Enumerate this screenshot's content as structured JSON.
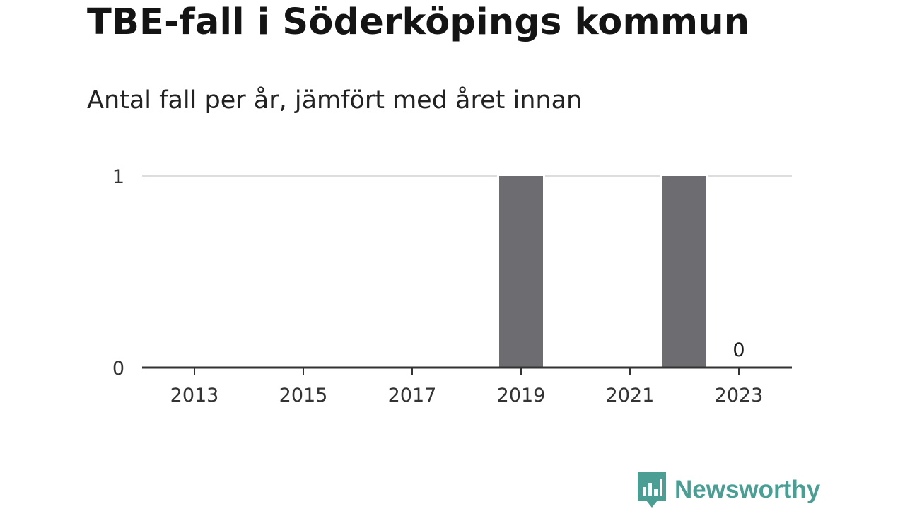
{
  "title": "TBE-fall i Söderköpings kommun",
  "subtitle": "Antal fall per år, jämfört med året innan",
  "brand": {
    "name": "Newsworthy",
    "color": "#4a9e94"
  },
  "colors": {
    "bar": "#6d6c71",
    "gridline": "#dddddd",
    "axis": "#333333"
  },
  "chart_data": {
    "type": "bar",
    "categories": [
      "2013",
      "2014",
      "2015",
      "2016",
      "2017",
      "2018",
      "2019",
      "2020",
      "2021",
      "2022",
      "2023"
    ],
    "tick_labels": [
      "2013",
      "2015",
      "2017",
      "2019",
      "2021",
      "2023"
    ],
    "values": [
      0,
      0,
      0,
      0,
      0,
      0,
      1,
      0,
      0,
      1,
      0
    ],
    "data_labels": [
      {
        "category": "2023",
        "text": "0"
      }
    ],
    "ylim": [
      0,
      1
    ],
    "yticks": [
      0,
      1
    ],
    "xlabel": "",
    "ylabel": "",
    "grid": true
  }
}
